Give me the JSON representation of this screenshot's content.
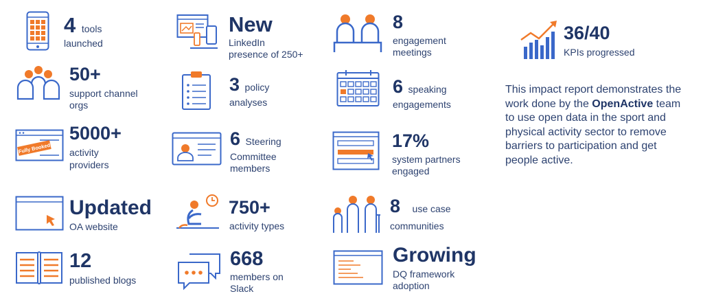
{
  "stats": {
    "tools": {
      "value": "4",
      "label": "tools",
      "label2": "launched"
    },
    "support": {
      "value": "50+",
      "line1": "support channel",
      "line2": "orgs"
    },
    "providers": {
      "value": "5000+",
      "line1": "activity",
      "line2": "providers",
      "badge": "Fully Booked"
    },
    "website": {
      "value": "Updated",
      "line1": "OA website"
    },
    "blogs": {
      "value": "12",
      "line1": "published blogs"
    },
    "linkedin": {
      "value": "New",
      "line1": "LinkedIn",
      "line2": "presence of 250+"
    },
    "policy": {
      "value": "3",
      "label": "policy",
      "line2": "analyses"
    },
    "steering": {
      "value": "6",
      "label": "Steering",
      "line2": "Committee",
      "line3": "members"
    },
    "activity_types": {
      "value": "750+",
      "line1": "activity types"
    },
    "slack": {
      "value": "668",
      "line1": "members on",
      "line2": "Slack"
    },
    "engagement": {
      "value": "8",
      "line1": "engagement",
      "line2": "meetings"
    },
    "speaking": {
      "value": "6",
      "label": "speaking",
      "line2": "engagements"
    },
    "partners": {
      "value": "17%",
      "line1": "system partners",
      "line2": "engaged"
    },
    "usecase": {
      "value": "8",
      "label": "use case",
      "line2": "communities"
    },
    "dq": {
      "value": "Growing",
      "line1": "DQ framework",
      "line2": "adoption"
    },
    "kpis": {
      "value": "36/40",
      "line1": "KPIs progressed"
    }
  },
  "intro": {
    "before": "This impact report demonstrates the work done by the ",
    "brand": "OpenActive",
    "after": " team to use open data in the sport and physical activity sector to remove barriers to participation and get people active."
  },
  "colors": {
    "navy": "#1f3566",
    "blue": "#3a68c9",
    "orange": "#f07a2a",
    "text": "#2d4270"
  }
}
